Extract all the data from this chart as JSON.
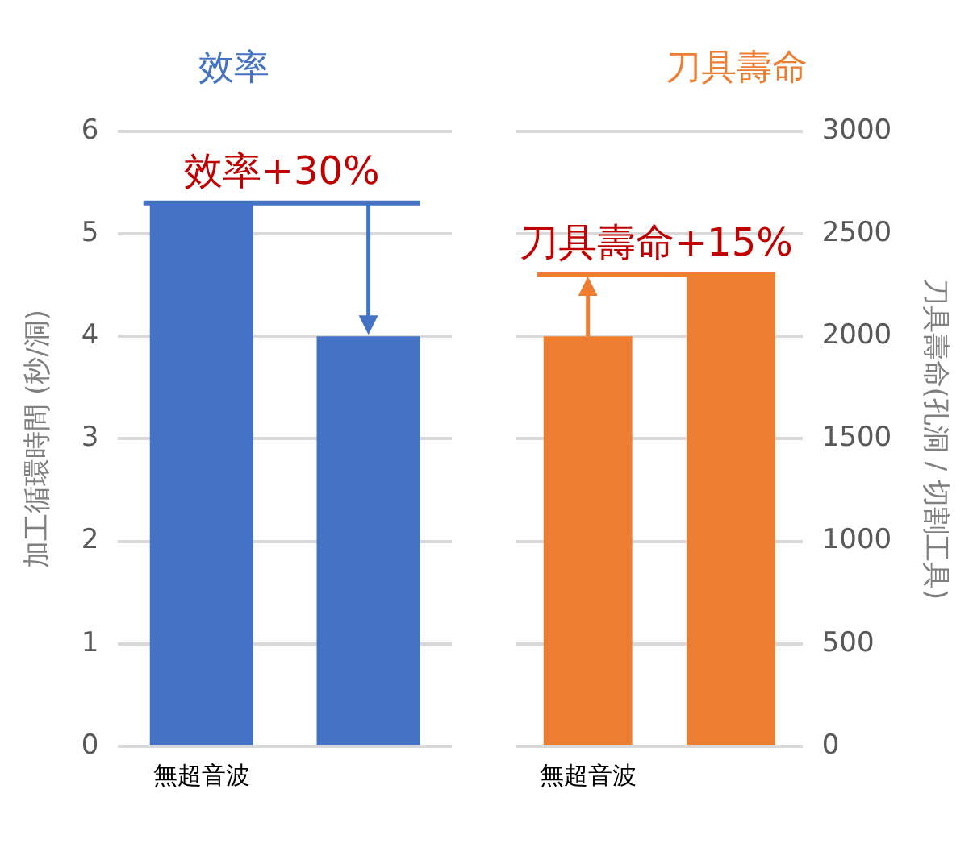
{
  "chart_data": [
    {
      "type": "bar",
      "title": "效率",
      "ylabel": "加工循環時間 (秒/洞)",
      "categories": [
        "無超音波",
        null
      ],
      "series": [
        {
          "color": "#4472c4",
          "values": [
            5.3,
            4
          ]
        }
      ],
      "ylim": [
        0,
        6
      ],
      "yticks": [
        0,
        1,
        2,
        3,
        4,
        5,
        6
      ],
      "grid": "y",
      "legend": false,
      "ref_lines": [
        {
          "axis": "y",
          "value": 5.3,
          "label": "效率+30%",
          "color": "#4472c4"
        }
      ]
    },
    {
      "type": "bar",
      "title": "刀具壽命",
      "y2label": "刀具壽命(孔洞 / 切割工具)",
      "categories": [
        "無超音波",
        null
      ],
      "series": [
        {
          "color": "#ed7d31",
          "values": [
            2000,
            2300
          ],
          "axis": "y2"
        }
      ],
      "y2lim": [
        0,
        3000
      ],
      "y2ticks": [
        0,
        500,
        1000,
        1500,
        2000,
        2500,
        3000
      ],
      "grid": "y",
      "legend": false,
      "ref_lines": [
        {
          "axis": "y2",
          "value": 2300,
          "label": "刀具壽命+15%",
          "color": "#ed7d31"
        }
      ]
    }
  ]
}
